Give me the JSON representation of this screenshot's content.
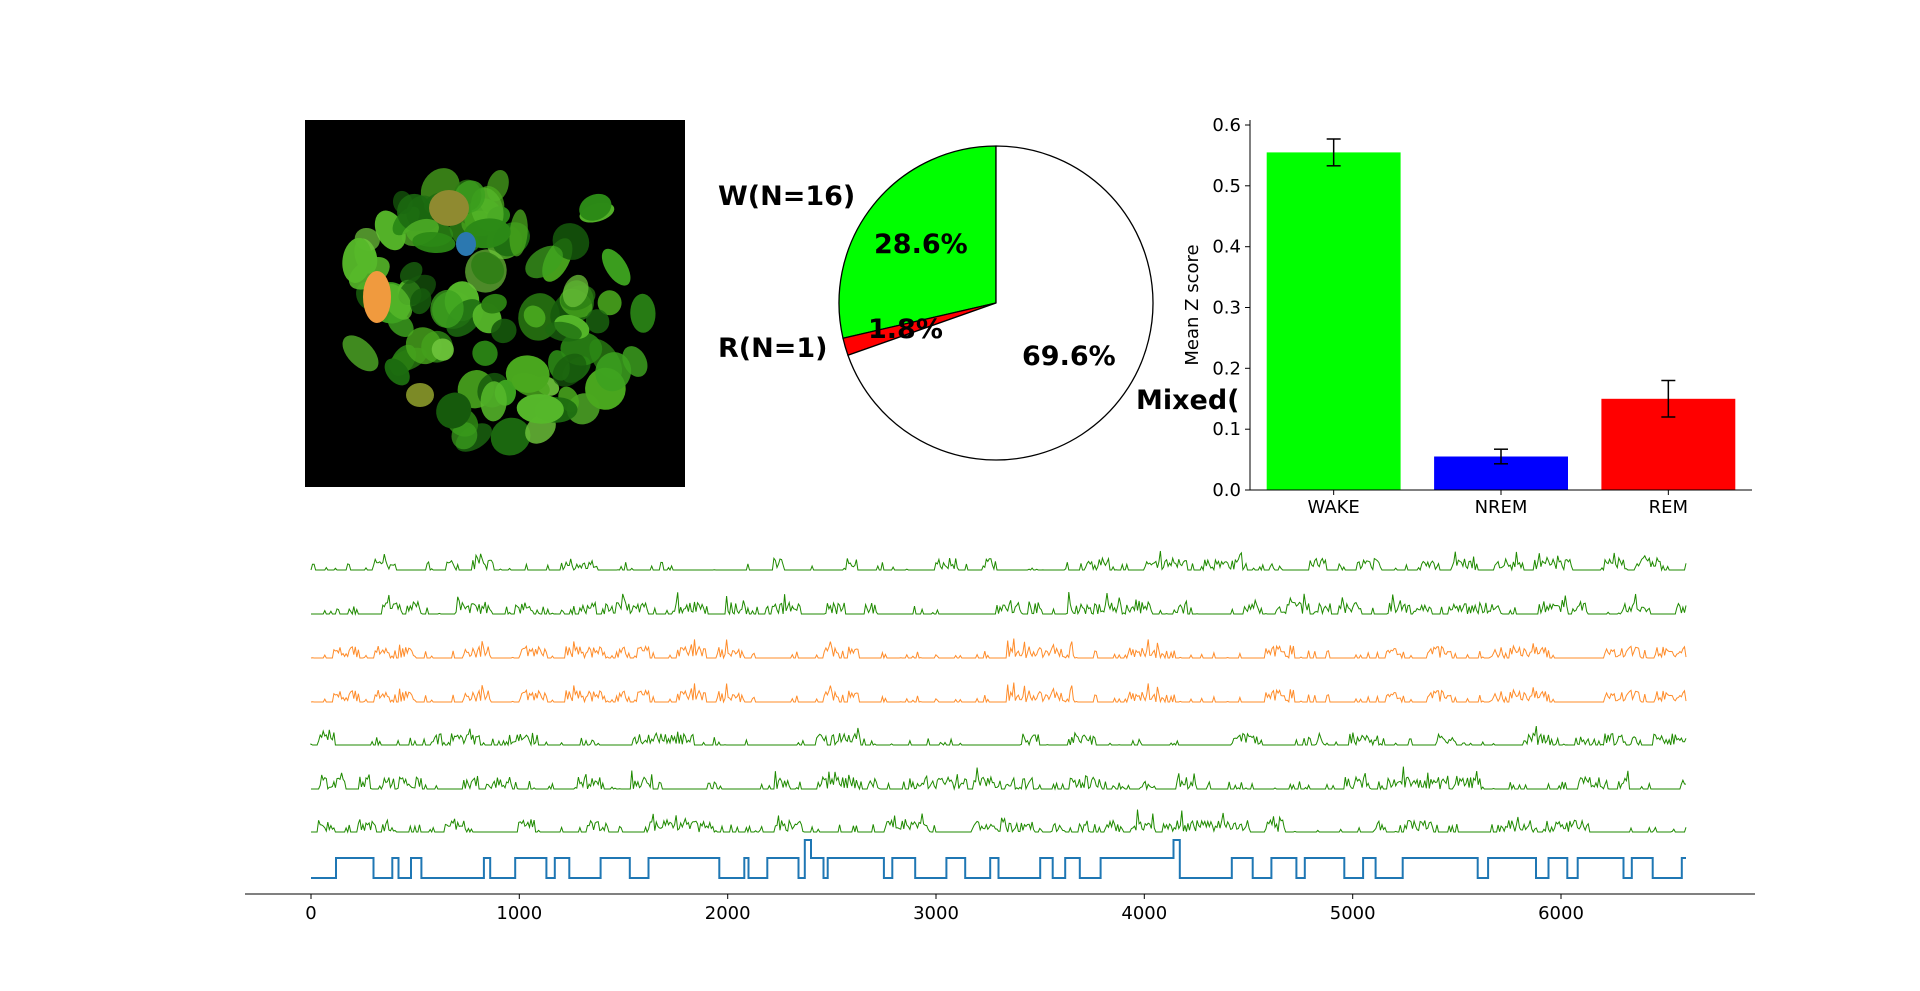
{
  "chart_data": [
    {
      "type": "image",
      "description_label": "",
      "colors": {
        "background": "#000000",
        "cells_dominant": "#2f8f16",
        "accent_orange": "#f09a3e",
        "accent_blue": "#2b78b0"
      }
    },
    {
      "type": "pie",
      "slices": [
        {
          "label": "W(N=16)",
          "pct_label": "28.6%",
          "value": 28.6,
          "color": "#00ff00"
        },
        {
          "label": "R(N=1)",
          "pct_label": "1.8%",
          "value": 1.8,
          "color": "#ff0000"
        },
        {
          "label": "Mixed(",
          "pct_label": "69.6%",
          "value": 69.6,
          "color": "#ffffff"
        }
      ],
      "start_angle_deg": 90,
      "direction": "counterclockwise"
    },
    {
      "type": "bar",
      "categories": [
        "WAKE",
        "NREM",
        "REM"
      ],
      "values": [
        0.555,
        0.055,
        0.15
      ],
      "errors": [
        0.022,
        0.012,
        0.03
      ],
      "colors": [
        "#00ff00",
        "#0000ff",
        "#ff0000"
      ],
      "ylabel": "Mean Z score",
      "ylim": [
        0,
        0.6
      ],
      "yticks": [
        "0.0",
        "0.1",
        "0.2",
        "0.3",
        "0.4",
        "0.5",
        "0.6"
      ],
      "grid": false
    },
    {
      "type": "line",
      "xlabel": "",
      "xlim": [
        0,
        6600
      ],
      "xticks": [
        "0",
        "1000",
        "2000",
        "3000",
        "4000",
        "5000",
        "6000"
      ],
      "series": [
        {
          "color": "#1f8a00",
          "kind": "activity",
          "seed": 11
        },
        {
          "color": "#1f8a00",
          "kind": "activity",
          "seed": 23
        },
        {
          "color": "#ff8c2a",
          "kind": "activity",
          "seed": 37
        },
        {
          "color": "#ff8c2a",
          "kind": "activity",
          "seed": 37
        },
        {
          "color": "#1f8a00",
          "kind": "activity",
          "seed": 53
        },
        {
          "color": "#1f8a00",
          "kind": "activity",
          "seed": 59
        },
        {
          "color": "#1f8a00",
          "kind": "activity",
          "seed": 71
        },
        {
          "color": "#1f77b4",
          "kind": "hypnogram",
          "segments": [
            [
              0,
              120,
              0
            ],
            [
              120,
              300,
              1
            ],
            [
              300,
              390,
              0
            ],
            [
              390,
              420,
              1
            ],
            [
              420,
              480,
              0
            ],
            [
              480,
              530,
              1
            ],
            [
              530,
              830,
              0
            ],
            [
              830,
              860,
              1
            ],
            [
              860,
              980,
              0
            ],
            [
              980,
              1130,
              1
            ],
            [
              1130,
              1170,
              0
            ],
            [
              1170,
              1240,
              1
            ],
            [
              1240,
              1390,
              0
            ],
            [
              1390,
              1530,
              1
            ],
            [
              1530,
              1620,
              0
            ],
            [
              1620,
              1960,
              1
            ],
            [
              1960,
              2080,
              0
            ],
            [
              2080,
              2100,
              1
            ],
            [
              2100,
              2190,
              0
            ],
            [
              2190,
              2340,
              1
            ],
            [
              2340,
              2370,
              0
            ],
            [
              2370,
              2400,
              2
            ],
            [
              2400,
              2460,
              1
            ],
            [
              2460,
              2480,
              0
            ],
            [
              2480,
              2750,
              1
            ],
            [
              2750,
              2790,
              0
            ],
            [
              2790,
              2900,
              1
            ],
            [
              2900,
              3050,
              0
            ],
            [
              3050,
              3140,
              1
            ],
            [
              3140,
              3260,
              0
            ],
            [
              3260,
              3300,
              1
            ],
            [
              3300,
              3500,
              0
            ],
            [
              3500,
              3560,
              1
            ],
            [
              3560,
              3620,
              0
            ],
            [
              3620,
              3690,
              1
            ],
            [
              3690,
              3790,
              0
            ],
            [
              3790,
              4140,
              1
            ],
            [
              4140,
              4170,
              2
            ],
            [
              4170,
              4420,
              0
            ],
            [
              4420,
              4520,
              1
            ],
            [
              4520,
              4610,
              0
            ],
            [
              4610,
              4730,
              1
            ],
            [
              4730,
              4770,
              0
            ],
            [
              4770,
              4960,
              1
            ],
            [
              4960,
              5050,
              0
            ],
            [
              5050,
              5110,
              1
            ],
            [
              5110,
              5240,
              0
            ],
            [
              5240,
              5600,
              1
            ],
            [
              5600,
              5650,
              0
            ],
            [
              5650,
              5880,
              1
            ],
            [
              5880,
              5940,
              0
            ],
            [
              5940,
              6030,
              1
            ],
            [
              6030,
              6080,
              0
            ],
            [
              6080,
              6300,
              1
            ],
            [
              6300,
              6340,
              0
            ],
            [
              6340,
              6440,
              1
            ],
            [
              6440,
              6580,
              0
            ],
            [
              6580,
              6600,
              1
            ]
          ]
        }
      ]
    }
  ]
}
